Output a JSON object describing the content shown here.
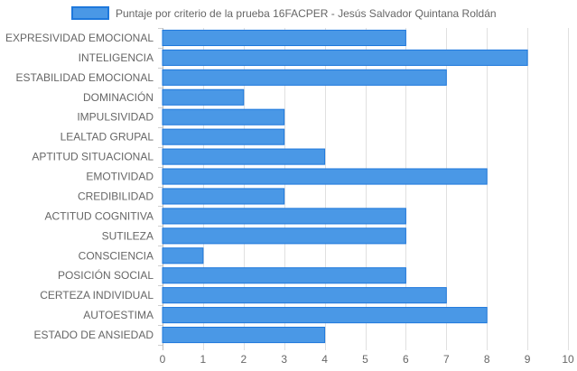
{
  "chart_data": {
    "type": "bar",
    "orientation": "horizontal",
    "legend_position": "top",
    "grid": true,
    "xlim": [
      0,
      10
    ],
    "x_ticks": [
      0,
      1,
      2,
      3,
      4,
      5,
      6,
      7,
      8,
      9,
      10
    ],
    "categories": [
      "EXPRESIVIDAD EMOCIONAL",
      "INTELIGENCIA",
      "ESTABILIDAD EMOCIONAL",
      "DOMINACIÓN",
      "IMPULSIVIDAD",
      "LEALTAD GRUPAL",
      "APTITUD SITUACIONAL",
      "EMOTIVIDAD",
      "CREDIBILIDAD",
      "ACTITUD COGNITIVA",
      "SUTILEZA",
      "CONSCIENCIA",
      "POSICIÓN SOCIAL",
      "CERTEZA INDIVIDUAL",
      "AUTOESTIMA",
      "ESTADO DE ANSIEDAD"
    ],
    "series": [
      {
        "name": "Puntaje por criterio de la prueba 16FACPER - Jesús Salvador Quintana Roldán",
        "color": "#4a98e6",
        "border_color": "#1e78dc",
        "values": [
          6,
          9,
          7,
          2,
          3,
          3,
          4,
          8,
          3,
          6,
          6,
          1,
          6,
          7,
          8,
          4
        ]
      }
    ]
  }
}
